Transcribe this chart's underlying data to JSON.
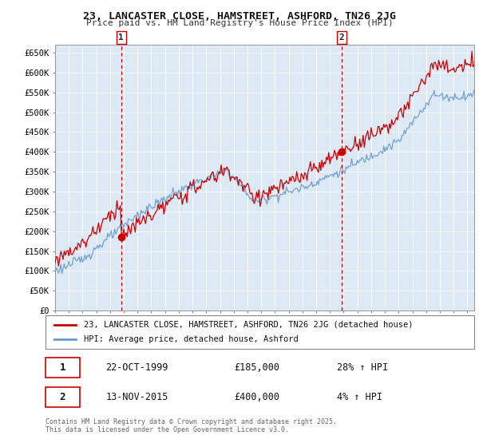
{
  "title": "23, LANCASTER CLOSE, HAMSTREET, ASHFORD, TN26 2JG",
  "subtitle": "Price paid vs. HM Land Registry's House Price Index (HPI)",
  "legend_line1": "23, LANCASTER CLOSE, HAMSTREET, ASHFORD, TN26 2JG (detached house)",
  "legend_line2": "HPI: Average price, detached house, Ashford",
  "sale1_date": "22-OCT-1999",
  "sale1_price": "£185,000",
  "sale1_hpi": "28% ↑ HPI",
  "sale2_date": "13-NOV-2015",
  "sale2_price": "£400,000",
  "sale2_hpi": "4% ↑ HPI",
  "copyright": "Contains HM Land Registry data © Crown copyright and database right 2025.\nThis data is licensed under the Open Government Licence v3.0.",
  "bg_color": "#ffffff",
  "chart_bg": "#dce9f5",
  "grid_color": "#aabbcc",
  "line_red": "#cc0000",
  "line_blue": "#6699cc",
  "vline_color": "#cc0000",
  "ylim": [
    0,
    670000
  ],
  "yticks": [
    0,
    50000,
    100000,
    150000,
    200000,
    250000,
    300000,
    350000,
    400000,
    450000,
    500000,
    550000,
    600000,
    650000
  ],
  "ytick_labels": [
    "£0",
    "£50K",
    "£100K",
    "£150K",
    "£200K",
    "£250K",
    "£300K",
    "£350K",
    "£400K",
    "£450K",
    "£500K",
    "£550K",
    "£600K",
    "£650K"
  ],
  "sale1_x": 1999.81,
  "sale2_x": 2015.87,
  "sale1_y": 185000,
  "sale2_y": 400000,
  "xmin": 1995.0,
  "xmax": 2025.5
}
